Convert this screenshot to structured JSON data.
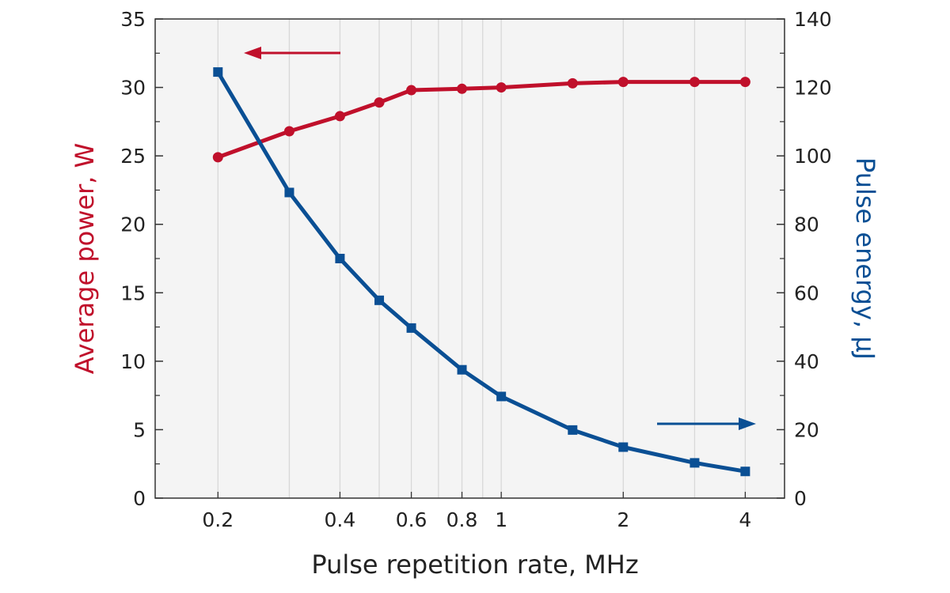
{
  "chart_data": {
    "type": "line",
    "xlabel": "Pulse repetition rate, MHz",
    "ylabel_left": "Average power, W",
    "ylabel_right": "Pulse energy, µJ",
    "x_scale": "log",
    "xlim": [
      0.14,
      5.0
    ],
    "ylim_left": [
      0,
      35
    ],
    "ylim_right": [
      0,
      140
    ],
    "x_ticks": [
      0.2,
      0.4,
      0.6,
      0.8,
      1,
      2,
      4
    ],
    "x_tick_labels": [
      "0.2",
      "0.4",
      "0.6",
      "0.8",
      "1",
      "2",
      "4"
    ],
    "x_grid": [
      0.2,
      0.3,
      0.4,
      0.5,
      0.6,
      0.7,
      0.8,
      0.9,
      1,
      2,
      3,
      4
    ],
    "y_ticks_left": [
      0,
      5,
      10,
      15,
      20,
      25,
      30,
      35
    ],
    "y_ticks_right": [
      0,
      20,
      40,
      60,
      80,
      100,
      120,
      140
    ],
    "grid": true,
    "colors": {
      "power": "#c0102b",
      "energy": "#0a4f94",
      "plot_bg": "#f4f4f4",
      "grid": "#d8d8d8",
      "axis": "#333333"
    },
    "series": [
      {
        "axis": "left",
        "marker": "circle",
        "x": [
          0.2,
          0.3,
          0.4,
          0.5,
          0.6,
          0.8,
          1.0,
          1.5,
          2.0,
          3.0,
          4.0
        ],
        "values": [
          24.9,
          26.8,
          27.9,
          28.9,
          29.8,
          29.9,
          30.0,
          30.3,
          30.4,
          30.4,
          30.4
        ]
      },
      {
        "axis": "right",
        "marker": "square",
        "x": [
          0.2,
          0.3,
          0.4,
          0.5,
          0.6,
          0.8,
          1.0,
          1.5,
          2.0,
          3.0,
          4.0
        ],
        "values": [
          124.5,
          89.3,
          70.0,
          57.8,
          49.7,
          37.5,
          29.7,
          19.9,
          14.9,
          10.3,
          7.8
        ]
      }
    ],
    "annotations": [
      {
        "name": "left-arrow",
        "direction": "left",
        "refers_to": "ylabel_left"
      },
      {
        "name": "right-arrow",
        "direction": "right",
        "refers_to": "ylabel_right"
      }
    ]
  }
}
